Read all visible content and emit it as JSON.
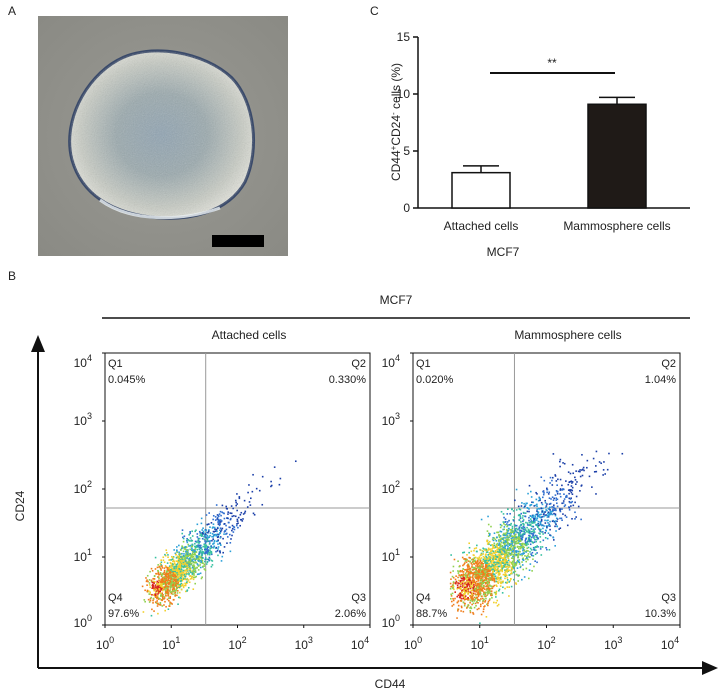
{
  "panels": {
    "a": "A",
    "b": "B",
    "c": "C"
  },
  "chart_data": [
    {
      "panel": "C",
      "type": "bar",
      "ylabel_main": "CD44",
      "ylabel_sup1": "+",
      "ylabel_mid": "CD24",
      "ylabel_sup2": "-",
      "ylabel_tail": " cells (%)",
      "xlabel": "MCF7",
      "categories": [
        "Attached cells",
        "Mammosphere cells"
      ],
      "values": [
        3.1,
        9.1
      ],
      "errors": [
        0.6,
        0.6
      ],
      "bar_colors": [
        "#ffffff",
        "#1f1a17"
      ],
      "ylim": [
        0,
        15
      ],
      "yticks": [
        0,
        5,
        10,
        15
      ],
      "significance": "**"
    },
    {
      "panel": "B",
      "type": "scatter",
      "group_title": "MCF7",
      "xlabel": "CD44",
      "ylabel": "CD24",
      "tick_labels": [
        "10",
        "10",
        "10",
        "10",
        "10"
      ],
      "tick_exponents": [
        "0",
        "1",
        "2",
        "3",
        "4"
      ],
      "plots": [
        {
          "title": "Attached cells",
          "quadrants": {
            "q1": {
              "name": "Q1",
              "value": "0.045%"
            },
            "q2": {
              "name": "Q2",
              "value": "0.330%"
            },
            "q3": {
              "name": "Q3",
              "value": "2.06%"
            },
            "q4": {
              "name": "Q4",
              "value": "97.6%"
            }
          }
        },
        {
          "title": "Mammosphere cells",
          "quadrants": {
            "q1": {
              "name": "Q1",
              "value": "0.020%"
            },
            "q2": {
              "name": "Q2",
              "value": "1.04%"
            },
            "q3": {
              "name": "Q3",
              "value": "10.3%"
            },
            "q4": {
              "name": "Q4",
              "value": "88.7%"
            }
          }
        }
      ]
    }
  ]
}
